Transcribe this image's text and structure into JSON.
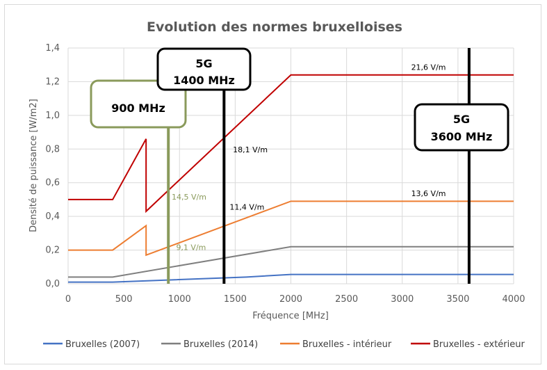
{
  "chart_data": {
    "type": "line",
    "title": "Evolution des normes bruxelloises",
    "xlabel": "Fréquence [MHz]",
    "ylabel": "Densité de puissance [W/m2]",
    "xlim": [
      0,
      4000
    ],
    "ylim": [
      0,
      1.4
    ],
    "x_ticks": [
      "0",
      "500",
      "1000",
      "1500",
      "2000",
      "2500",
      "3000",
      "3500",
      "4000"
    ],
    "y_ticks": [
      "0,0",
      "0,2",
      "0,4",
      "0,6",
      "0,8",
      "1,0",
      "1,2",
      "1,4"
    ],
    "grid": true,
    "legend_position": "bottom",
    "series": [
      {
        "name": "Bruxelles (2007)",
        "color": "#4472c4",
        "points": [
          [
            0,
            0.01
          ],
          [
            400,
            0.01
          ],
          [
            1600,
            0.04
          ],
          [
            2000,
            0.055
          ],
          [
            4000,
            0.055
          ]
        ]
      },
      {
        "name": "Bruxelles (2014)",
        "color": "#7f7f7f",
        "points": [
          [
            0,
            0.04
          ],
          [
            400,
            0.04
          ],
          [
            2000,
            0.22
          ],
          [
            4000,
            0.22
          ]
        ]
      },
      {
        "name": "Bruxelles - intérieur",
        "color": "#ed7d31",
        "points": [
          [
            0,
            0.2
          ],
          [
            400,
            0.2
          ],
          [
            700,
            0.345
          ],
          [
            700,
            0.17
          ],
          [
            2000,
            0.49
          ],
          [
            4000,
            0.49
          ]
        ]
      },
      {
        "name": "Bruxelles - extérieur",
        "color": "#c00000",
        "points": [
          [
            0,
            0.5
          ],
          [
            400,
            0.5
          ],
          [
            700,
            0.86
          ],
          [
            700,
            0.43
          ],
          [
            2000,
            1.24
          ],
          [
            4000,
            1.24
          ]
        ]
      }
    ],
    "vertical_markers": [
      {
        "x": 900,
        "color": "#8a9a5b",
        "label": "900 MHz"
      },
      {
        "x": 1400,
        "color": "#000000",
        "label_line1": "5G",
        "label_line2": "1400 MHz"
      },
      {
        "x": 3600,
        "color": "#000000",
        "label_line1": "5G",
        "label_line2": "3600 MHz"
      }
    ],
    "annotations": [
      {
        "text": "21,6 V/m",
        "x": 3080,
        "y": 1.27,
        "color": "#000000"
      },
      {
        "text": "18,1 V/m",
        "x": 1480,
        "y": 0.78,
        "color": "#000000"
      },
      {
        "text": "14,5 V/m",
        "x": 930,
        "y": 0.5,
        "color": "#8a9a5b"
      },
      {
        "text": "11,4 V/m",
        "x": 1450,
        "y": 0.44,
        "color": "#000000"
      },
      {
        "text": "13,6 V/m",
        "x": 3080,
        "y": 0.52,
        "color": "#000000"
      },
      {
        "text": "9,1 V/m",
        "x": 970,
        "y": 0.2,
        "color": "#8a9a5b"
      }
    ]
  }
}
